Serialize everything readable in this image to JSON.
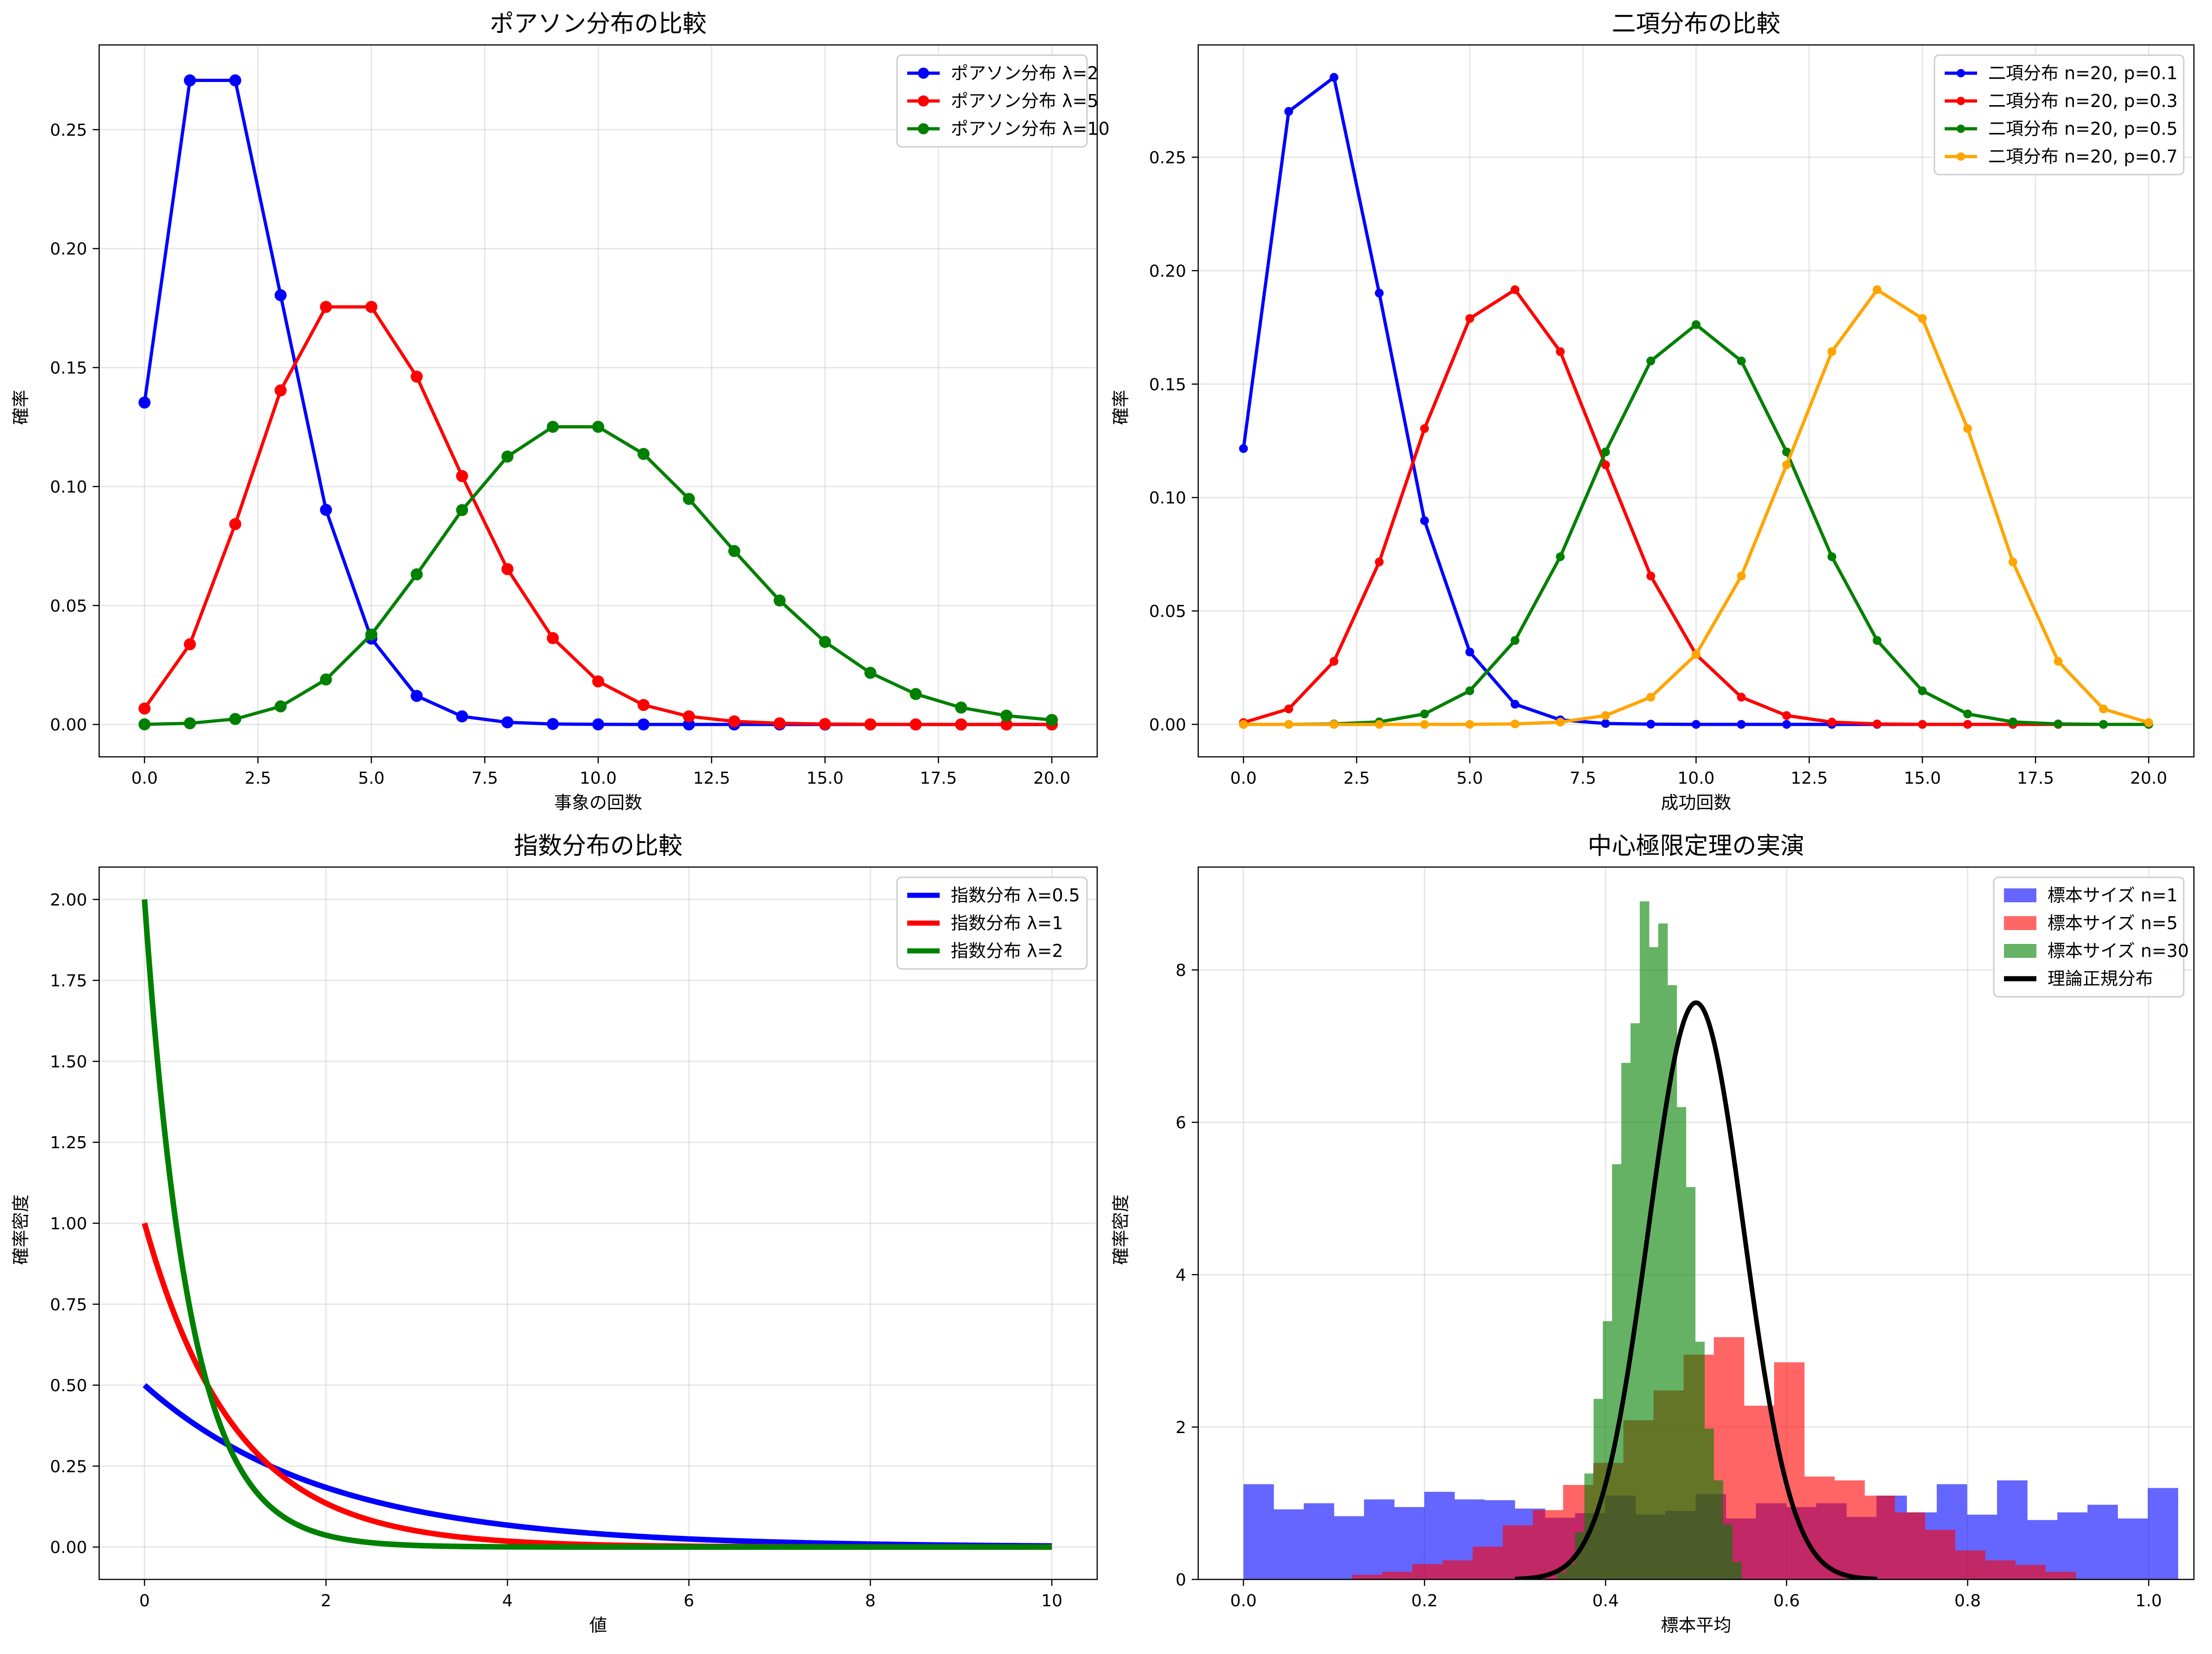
{
  "chart_data": [
    {
      "type": "line",
      "title": "ポアソン分布の比較",
      "xlabel": "事象の回数",
      "ylabel": "確率",
      "xlim": [
        -1.0,
        21.0
      ],
      "ylim": [
        -0.0136,
        0.2856
      ],
      "xticks": [
        0,
        2.5,
        5,
        7.5,
        10,
        12.5,
        15,
        17.5,
        20
      ],
      "xtick_labels": [
        "0.0",
        "2.5",
        "5.0",
        "7.5",
        "10.0",
        "12.5",
        "15.0",
        "17.5",
        "20.0"
      ],
      "yticks": [
        0,
        0.05,
        0.1,
        0.15,
        0.2,
        0.25
      ],
      "ytick_labels": [
        "0.00",
        "0.05",
        "0.10",
        "0.15",
        "0.20",
        "0.25"
      ],
      "grid": true,
      "legend_position": "top-right",
      "x": [
        0,
        1,
        2,
        3,
        4,
        5,
        6,
        7,
        8,
        9,
        10,
        11,
        12,
        13,
        14,
        15,
        16,
        17,
        18,
        19,
        20
      ],
      "series": [
        {
          "name": "ポアソン分布 λ=2",
          "color": "#0000ff",
          "marker": "circle",
          "values": [
            0.1353,
            0.2707,
            0.2707,
            0.1804,
            0.0902,
            0.0361,
            0.012,
            0.0034,
            0.0009,
            0.0002,
            4e-05,
            1e-05,
            0,
            0,
            0,
            0,
            0,
            0,
            0,
            0,
            0
          ]
        },
        {
          "name": "ポアソン分布 λ=5",
          "color": "#ff0000",
          "marker": "circle",
          "values": [
            0.0067,
            0.0337,
            0.0842,
            0.1404,
            0.1755,
            0.1755,
            0.1462,
            0.1044,
            0.0653,
            0.0363,
            0.0181,
            0.0082,
            0.0034,
            0.0013,
            0.0005,
            0.0002,
            5e-05,
            1e-05,
            0,
            0,
            0
          ]
        },
        {
          "name": "ポアソン分布 λ=10",
          "color": "#008000",
          "marker": "circle",
          "values": [
            5e-05,
            0.0005,
            0.0023,
            0.0076,
            0.0189,
            0.0378,
            0.0631,
            0.0901,
            0.1126,
            0.1251,
            0.1251,
            0.1137,
            0.0948,
            0.0729,
            0.0521,
            0.0347,
            0.0217,
            0.0128,
            0.0071,
            0.0037,
            0.0019
          ]
        }
      ]
    },
    {
      "type": "line",
      "title": "二項分布の比較",
      "xlabel": "成功回数",
      "ylabel": "確率",
      "xlim": [
        -1.0,
        21.0
      ],
      "ylim": [
        -0.0143,
        0.2995
      ],
      "xticks": [
        0,
        2.5,
        5,
        7.5,
        10,
        12.5,
        15,
        17.5,
        20
      ],
      "xtick_labels": [
        "0.0",
        "2.5",
        "5.0",
        "7.5",
        "10.0",
        "12.5",
        "15.0",
        "17.5",
        "20.0"
      ],
      "yticks": [
        0,
        0.05,
        0.1,
        0.15,
        0.2,
        0.25
      ],
      "ytick_labels": [
        "0.00",
        "0.05",
        "0.10",
        "0.15",
        "0.20",
        "0.25"
      ],
      "grid": true,
      "legend_position": "top-right",
      "x": [
        0,
        1,
        2,
        3,
        4,
        5,
        6,
        7,
        8,
        9,
        10,
        11,
        12,
        13,
        14,
        15,
        16,
        17,
        18,
        19,
        20
      ],
      "series": [
        {
          "name": "二項分布 n=20, p=0.1",
          "color": "#0000ff",
          "marker": "circle",
          "values": [
            0.1216,
            0.2702,
            0.2852,
            0.1901,
            0.0898,
            0.0319,
            0.0089,
            0.002,
            0.0004,
            0.0001,
            0,
            0,
            0,
            0,
            0,
            0,
            0,
            0,
            0,
            0,
            0
          ]
        },
        {
          "name": "二項分布 n=20, p=0.3",
          "color": "#ff0000",
          "marker": "circle",
          "values": [
            0.0008,
            0.0068,
            0.0278,
            0.0716,
            0.1304,
            0.1789,
            0.1916,
            0.1643,
            0.1144,
            0.0654,
            0.0308,
            0.012,
            0.0039,
            0.001,
            0.0002,
            0,
            0,
            0,
            0,
            0,
            0
          ]
        },
        {
          "name": "二項分布 n=20, p=0.5",
          "color": "#008000",
          "marker": "circle",
          "values": [
            0,
            0,
            0.0002,
            0.0011,
            0.0046,
            0.0148,
            0.037,
            0.0739,
            0.1201,
            0.1602,
            0.1762,
            0.1602,
            0.1201,
            0.0739,
            0.037,
            0.0148,
            0.0046,
            0.0011,
            0.0002,
            0,
            0
          ]
        },
        {
          "name": "二項分布 n=20, p=0.7",
          "color": "#ffa500",
          "marker": "circle",
          "values": [
            0,
            0,
            0,
            0,
            0,
            0,
            0.0002,
            0.001,
            0.0039,
            0.012,
            0.0308,
            0.0654,
            0.1144,
            0.1643,
            0.1916,
            0.1789,
            0.1304,
            0.0716,
            0.0278,
            0.0068,
            0.0008
          ]
        }
      ]
    },
    {
      "type": "line",
      "title": "指数分布の比較",
      "xlabel": "値",
      "ylabel": "確率密度",
      "xlim": [
        -0.5,
        10.5
      ],
      "ylim": [
        -0.1,
        2.1
      ],
      "xticks": [
        0,
        2,
        4,
        6,
        8,
        10
      ],
      "xtick_labels": [
        "0",
        "2",
        "4",
        "6",
        "8",
        "10"
      ],
      "yticks": [
        0,
        0.25,
        0.5,
        0.75,
        1.0,
        1.25,
        1.5,
        1.75,
        2.0
      ],
      "ytick_labels": [
        "0.00",
        "0.25",
        "0.50",
        "0.75",
        "1.00",
        "1.25",
        "1.50",
        "1.75",
        "2.00"
      ],
      "grid": true,
      "legend_position": "top-right",
      "x_range": [
        0,
        10
      ],
      "series": [
        {
          "name": "指数分布 λ=0.5",
          "color": "#0000ff",
          "rate": 0.5
        },
        {
          "name": "指数分布 λ=1",
          "color": "#ff0000",
          "rate": 1
        },
        {
          "name": "指数分布 λ=2",
          "color": "#008000",
          "rate": 2
        }
      ]
    },
    {
      "type": "histogram",
      "title": "中心極限定理の実演",
      "xlabel": "標本平均",
      "ylabel": "確率密度",
      "xlim": [
        -0.05,
        1.05
      ],
      "ylim": [
        0,
        9.35
      ],
      "xticks": [
        0,
        0.2,
        0.4,
        0.6,
        0.8,
        1.0
      ],
      "xtick_labels": [
        "0.0",
        "0.2",
        "0.4",
        "0.6",
        "0.8",
        "1.0"
      ],
      "yticks": [
        0,
        2,
        4,
        6,
        8
      ],
      "ytick_labels": [
        "0",
        "2",
        "4",
        "6",
        "8"
      ],
      "grid": true,
      "legend_position": "top-right",
      "series": [
        {
          "name": "標本サイズ n=1",
          "color": "#0000ff",
          "alpha": 0.6,
          "bin_start": 0.0,
          "bin_width": 0.0333,
          "values": [
            1.25,
            0.92,
            1.0,
            0.83,
            1.05,
            0.95,
            1.15,
            1.05,
            1.04,
            0.93,
            0.81,
            0.87,
            1.1,
            0.85,
            0.9,
            1.12,
            0.8,
            1.0,
            0.95,
            1.0,
            0.82,
            1.1,
            0.88,
            1.25,
            0.85,
            1.3,
            0.78,
            0.88,
            0.98,
            0.8,
            1.2
          ]
        },
        {
          "name": "標本サイズ n=5",
          "color": "#ff0000",
          "alpha": 0.6,
          "bin_start": 0.12,
          "bin_width": 0.0333,
          "values": [
            0.06,
            0.1,
            0.2,
            0.25,
            0.43,
            0.71,
            0.91,
            1.24,
            1.53,
            2.09,
            2.48,
            2.95,
            3.18,
            2.28,
            2.85,
            1.35,
            1.3,
            1.1,
            0.88,
            0.65,
            0.38,
            0.25,
            0.19,
            0.1
          ]
        },
        {
          "name": "標本サイズ n=30",
          "color": "#008000",
          "alpha": 0.6,
          "bin_start": 0.346,
          "bin_width": 0.0102,
          "values": [
            0.09,
            0.2,
            0.62,
            1.39,
            2.37,
            3.39,
            5.45,
            6.78,
            7.3,
            8.9,
            8.3,
            8.61,
            7.8,
            6.2,
            5.15,
            3.12,
            1.98,
            1.3,
            0.72,
            0.23
          ]
        },
        {
          "name": "理論正規分布",
          "color": "#000000",
          "type": "normal_pdf",
          "mean": 0.5,
          "sd": 0.0527,
          "x_range": [
            0.3,
            0.7
          ]
        }
      ]
    }
  ]
}
